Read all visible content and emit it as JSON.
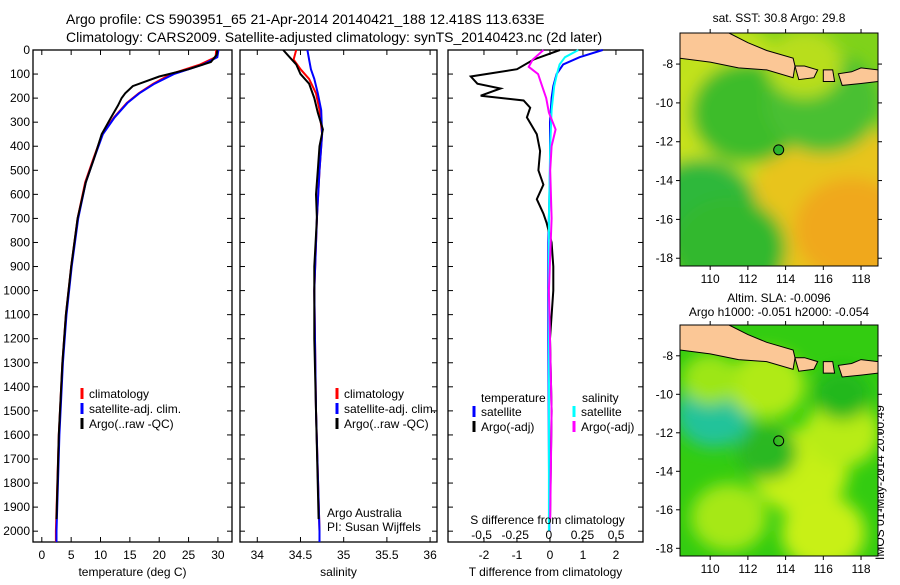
{
  "header": {
    "line1": "Argo profile: CS 5903951_65 21-Apr-2014 20140421_188 12.418S 113.633E",
    "line2": "Climatology: CARS2009. Satellite-adjusted climatology: synTS_20140423.nc (2d later)"
  },
  "chart_data": [
    {
      "type": "line",
      "id": "temperature",
      "xlabel": "temperature (deg C)",
      "ylabel": "",
      "xlim": [
        -1.5,
        32.4
      ],
      "ylim": [
        2045,
        0
      ],
      "xticks": [
        0,
        5,
        10,
        15,
        20,
        25,
        30
      ],
      "yticks": [
        0,
        100,
        200,
        300,
        400,
        500,
        600,
        700,
        800,
        900,
        1000,
        1100,
        1200,
        1300,
        1400,
        1500,
        1600,
        1700,
        1800,
        1900,
        2000
      ],
      "legend": [
        "climatology",
        "satellite-adj. clim.",
        "Argo(..raw -QC)"
      ],
      "legend_position": "lower-center",
      "series": [
        {
          "name": "climatology",
          "color": "#ff0000",
          "depth": [
            0,
            30,
            60,
            100,
            140,
            180,
            220,
            280,
            350,
            450,
            550,
            700,
            900,
            1100,
            1300,
            1600,
            2000,
            2045
          ],
          "values": [
            29.7,
            29.6,
            27,
            22,
            19,
            16.5,
            14.5,
            12.3,
            10.3,
            8.8,
            7.4,
            6.1,
            5,
            4.1,
            3.5,
            2.9,
            2.4,
            2.4
          ]
        },
        {
          "name": "satellite-adj. clim.",
          "color": "#0000ff",
          "depth": [
            0,
            30,
            60,
            100,
            140,
            180,
            220,
            280,
            350,
            450,
            550,
            700,
            900,
            1100,
            1300,
            1600,
            2000,
            2045
          ],
          "values": [
            30.1,
            29.9,
            27.5,
            22.5,
            19.2,
            16.6,
            14.6,
            12.4,
            10.4,
            8.9,
            7.5,
            6.2,
            5.1,
            4.2,
            3.6,
            3,
            2.5,
            2.5
          ]
        },
        {
          "name": "Argo(..raw -QC)",
          "color": "#000000",
          "depth": [
            0,
            20,
            50,
            80,
            110,
            150,
            180,
            200,
            230,
            280,
            350,
            450,
            550,
            700,
            900,
            1100,
            1300,
            1600,
            1950
          ],
          "values": [
            29.9,
            29.8,
            28.8,
            25,
            20,
            15.5,
            14.2,
            13.6,
            13,
            11.8,
            10.2,
            8.9,
            7.5,
            6.1,
            5,
            4.1,
            3.5,
            2.9,
            2.5
          ]
        }
      ]
    },
    {
      "type": "line",
      "id": "salinity",
      "xlabel": "salinity",
      "xlim": [
        33.8,
        36.08
      ],
      "ylim": [
        2045,
        0
      ],
      "xticks": [
        34,
        34.5,
        35,
        35.5,
        36
      ],
      "legend": [
        "climatology",
        "satellite-adj. clim.",
        "Argo(..raw -QC)"
      ],
      "legend_position": "lower-center",
      "annotation": [
        "Argo Australia",
        "PI: Susan Wijffels"
      ],
      "series": [
        {
          "name": "climatology",
          "color": "#ff0000",
          "depth": [
            0,
            40,
            80,
            120,
            180,
            250,
            350,
            500,
            700,
            1000,
            1500,
            2000,
            2045
          ],
          "values": [
            34.45,
            34.42,
            34.5,
            34.6,
            34.68,
            34.72,
            34.75,
            34.72,
            34.69,
            34.66,
            34.68,
            34.72,
            34.72
          ]
        },
        {
          "name": "satellite-adj. clim.",
          "color": "#0000ff",
          "depth": [
            0,
            40,
            80,
            120,
            180,
            250,
            350,
            500,
            700,
            1000,
            1500,
            2000,
            2045
          ],
          "values": [
            34.58,
            34.6,
            34.62,
            34.66,
            34.7,
            34.74,
            34.75,
            34.72,
            34.69,
            34.66,
            34.68,
            34.72,
            34.72
          ]
        },
        {
          "name": "Argo(..raw -QC)",
          "color": "#000000",
          "depth": [
            0,
            20,
            60,
            100,
            140,
            200,
            260,
            330,
            400,
            500,
            600,
            700,
            900,
            1200,
            1500,
            1950
          ],
          "values": [
            34.3,
            34.35,
            34.45,
            34.5,
            34.6,
            34.66,
            34.7,
            34.76,
            34.72,
            34.7,
            34.68,
            34.69,
            34.66,
            34.66,
            34.68,
            34.71
          ]
        }
      ]
    },
    {
      "type": "line",
      "id": "differences",
      "xlabel": "T difference from climatology",
      "xlabel2": "S difference from climatology",
      "xlim": [
        -3.09,
        2.82
      ],
      "xlim_s": [
        -0.75,
        0.7
      ],
      "ylim": [
        2045,
        0
      ],
      "xticks": [
        -2,
        -1,
        0,
        1,
        2
      ],
      "xticks_s": [
        -0.5,
        -0.25,
        0,
        0.25,
        0.5
      ],
      "legend_temperature": {
        "title": "temperature",
        "items": [
          "satellite",
          "Argo(-adj)"
        ]
      },
      "legend_salinity": {
        "title": "salinity",
        "items": [
          "satellite",
          "Argo(-adj)"
        ]
      },
      "series": [
        {
          "name": "temperature satellite",
          "axis": "T",
          "color": "#0000ff",
          "depth": [
            0,
            30,
            60,
            100,
            150,
            200,
            300,
            500,
            800,
            1200,
            2000
          ],
          "values": [
            1.6,
            0.9,
            0.4,
            0.2,
            0.1,
            0.05,
            0,
            0,
            -0.05,
            -0.05,
            -0.02
          ]
        },
        {
          "name": "temperature Argo(-adj)",
          "axis": "T",
          "color": "#000000",
          "depth": [
            0,
            40,
            80,
            110,
            140,
            160,
            190,
            210,
            240,
            280,
            350,
            420,
            500,
            560,
            620,
            680,
            720,
            800,
            900,
            1000,
            1200,
            1500,
            1950
          ],
          "values": [
            0.3,
            -0.5,
            -1,
            -2.4,
            -2.2,
            -1.5,
            -2.1,
            -0.8,
            -0.6,
            -0.7,
            -0.4,
            -0.3,
            -0.35,
            -0.2,
            -0.4,
            -0.2,
            -0.1,
            0.05,
            0.1,
            0.1,
            0,
            0.05,
            0
          ]
        },
        {
          "name": "salinity satellite",
          "axis": "S",
          "color": "#00ffff",
          "depth": [
            0,
            30,
            60,
            100,
            150,
            250,
            400,
            700,
            1000,
            1500,
            2000
          ],
          "values": [
            0.22,
            0.12,
            0.08,
            0.06,
            0.04,
            0.02,
            0.01,
            0,
            0,
            0,
            0
          ]
        },
        {
          "name": "salinity Argo(-adj)",
          "axis": "S",
          "color": "#ff00ff",
          "depth": [
            0,
            40,
            70,
            100,
            150,
            200,
            260,
            330,
            400,
            500,
            700,
            1000,
            1500,
            1950
          ],
          "values": [
            -0.04,
            -0.12,
            -0.15,
            -0.08,
            -0.05,
            -0.02,
            0,
            0.05,
            0.02,
            0.01,
            0.02,
            0,
            0.02,
            0.01
          ]
        }
      ]
    },
    {
      "type": "heatmap",
      "id": "sst-map",
      "title": "sat. SST: 30.8  Argo: 29.8",
      "xlim": [
        108.4,
        118.9
      ],
      "ylim": [
        -18.4,
        -6.4
      ],
      "xticks": [
        110,
        112,
        114,
        116,
        118
      ],
      "yticks": [
        -8,
        -10,
        -12,
        -14,
        -16,
        -18
      ],
      "profile_location": [
        113.633,
        -12.418
      ]
    },
    {
      "type": "heatmap",
      "id": "sla-map",
      "title1": "Altim. SLA: -0.0096",
      "title2": "Argo h1000: -0.051 h2000: -0.054",
      "xlim": [
        108.4,
        118.9
      ],
      "ylim": [
        -18.4,
        -6.4
      ],
      "xticks": [
        110,
        112,
        114,
        116,
        118
      ],
      "yticks": [
        -8,
        -10,
        -12,
        -14,
        -16,
        -18
      ],
      "profile_location": [
        113.633,
        -12.418
      ]
    }
  ],
  "footer": {
    "timestamp": "IMOS 01-May-2014 20:00:49"
  }
}
